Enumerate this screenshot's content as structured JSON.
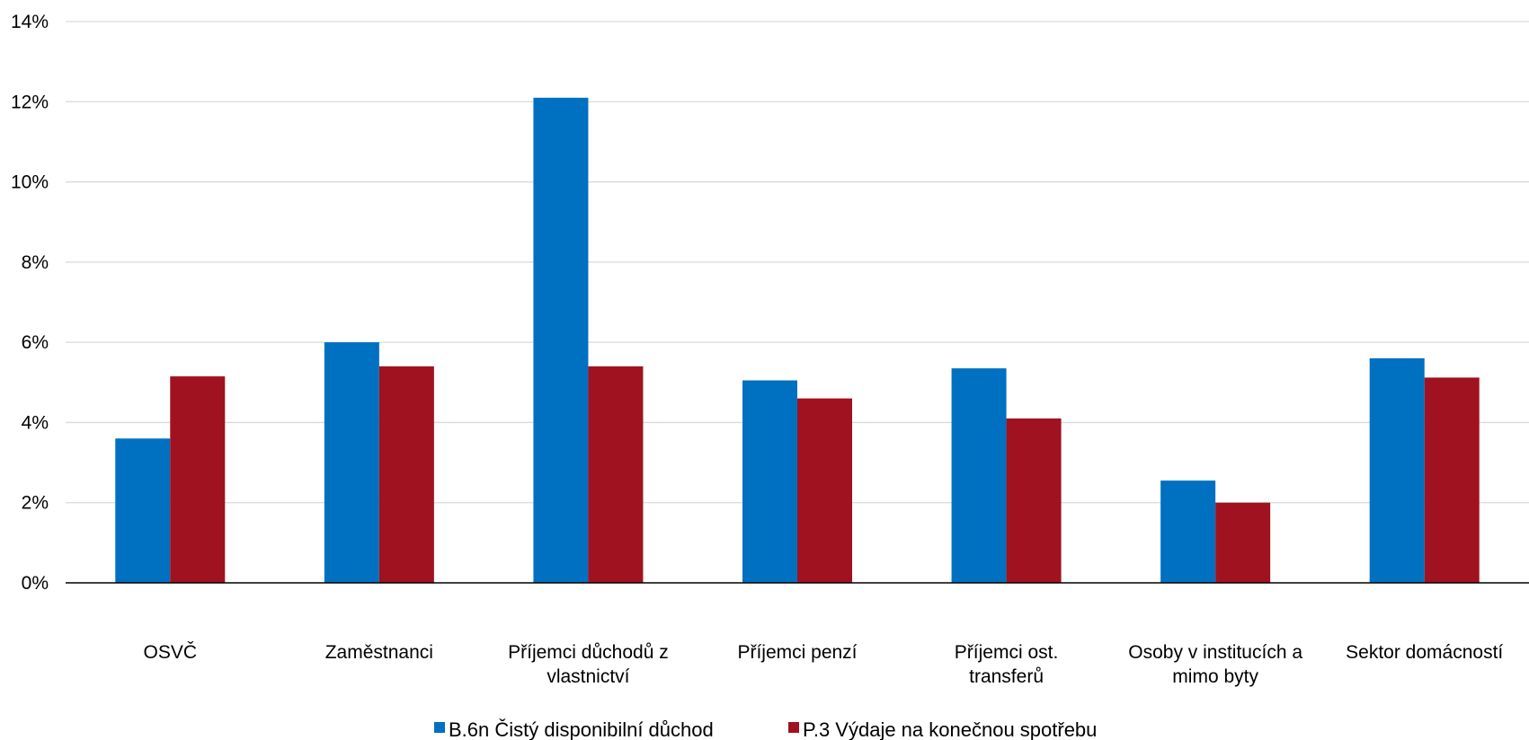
{
  "chart_data": {
    "type": "bar",
    "categories": [
      [
        "OSVČ"
      ],
      [
        "Zaměstnanci"
      ],
      [
        "Příjemci důchodů z",
        "vlastnictví"
      ],
      [
        "Příjemci penzí"
      ],
      [
        "Příjemci ost.",
        "transferů"
      ],
      [
        "Osoby v institucích a",
        "mimo byty"
      ],
      [
        "Sektor domácností"
      ]
    ],
    "series": [
      {
        "name": "B.6n Čistý disponibilní důchod",
        "color": "#0070C0",
        "values": [
          3.6,
          6.0,
          12.1,
          5.05,
          5.35,
          2.55,
          5.6
        ]
      },
      {
        "name": "P.3 Výdaje na konečnou spotřebu",
        "color": "#A01220",
        "values": [
          5.15,
          5.4,
          5.4,
          4.6,
          4.1,
          2.0,
          5.12
        ]
      }
    ],
    "ylim": [
      0,
      14
    ],
    "yticks": [
      0,
      2,
      4,
      6,
      8,
      10,
      12,
      14
    ],
    "ytick_labels": [
      "0%",
      "2%",
      "4%",
      "6%",
      "8%",
      "10%",
      "12%",
      "14%"
    ],
    "grid": true,
    "legend_position": "bottom",
    "gridline_color": "#D9D9D9",
    "axis_color": "#000000"
  }
}
